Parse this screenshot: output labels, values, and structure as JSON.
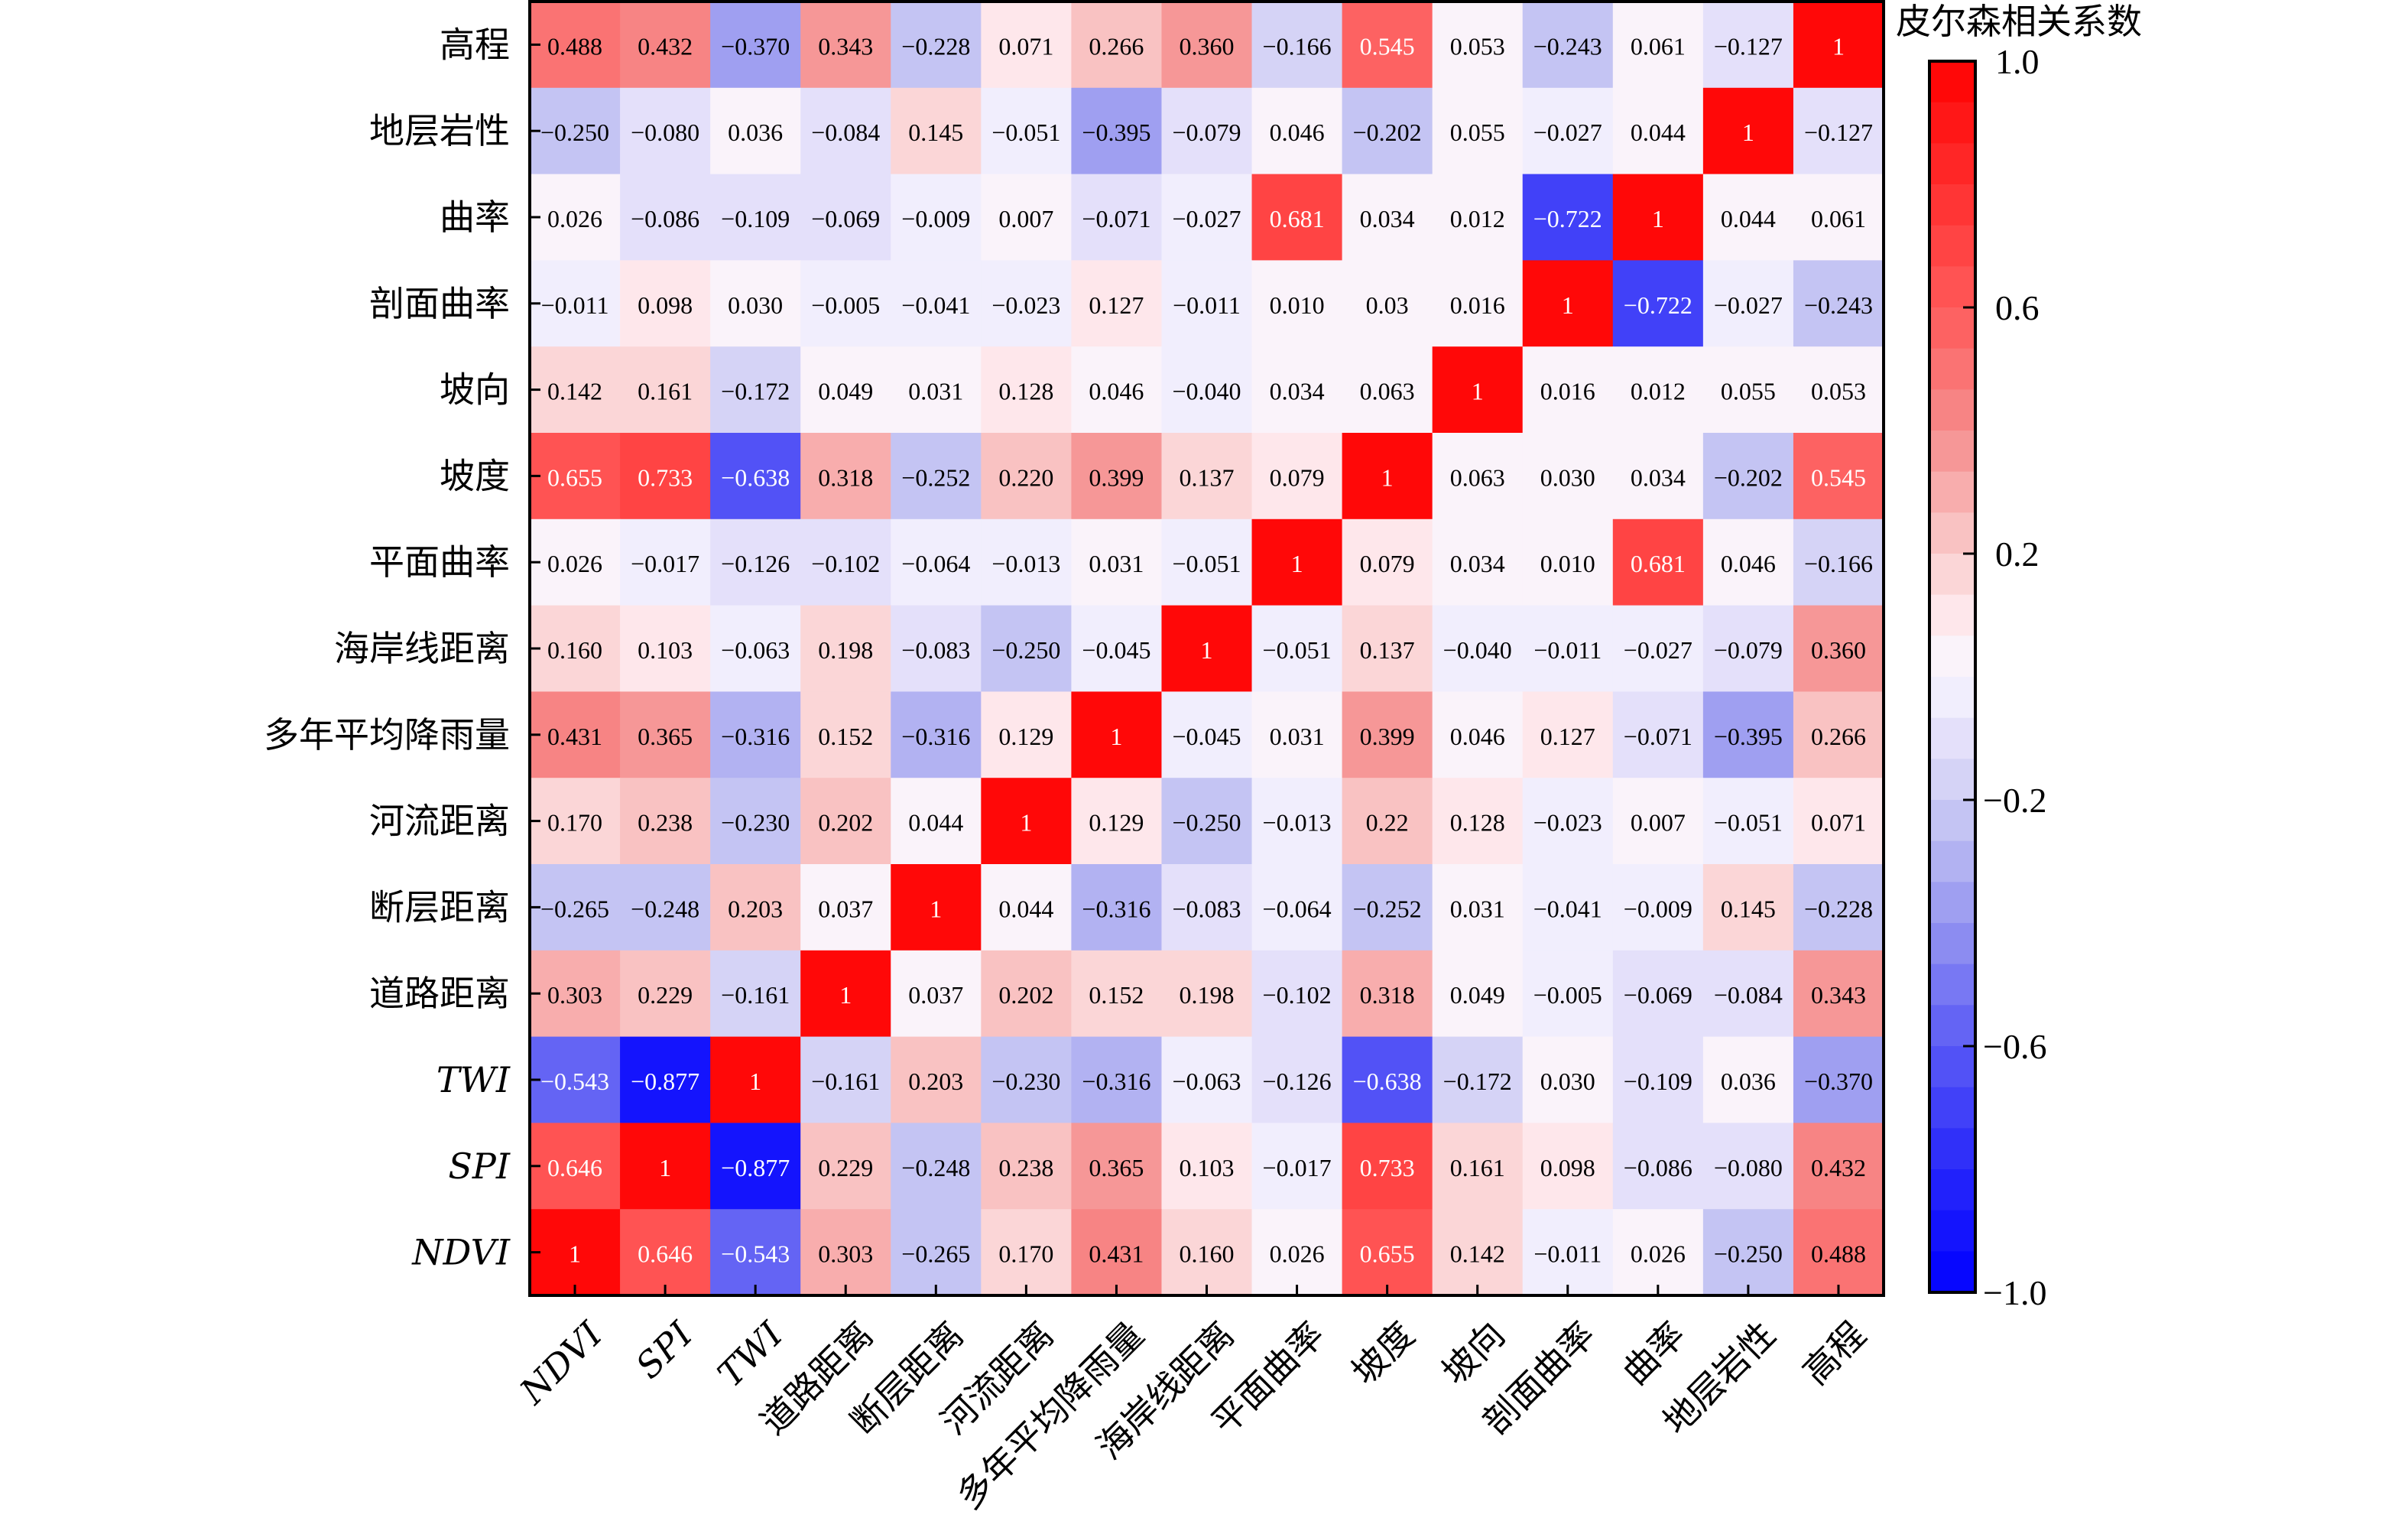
{
  "chart_data": {
    "type": "heatmap",
    "title": "",
    "colorbar": {
      "title": "皮尔森相关系数",
      "range": [
        -1.0,
        1.0
      ],
      "ticks": [
        1.0,
        0.6,
        0.2,
        -0.2,
        -0.6,
        -1.0
      ],
      "tick_labels": [
        "1.0",
        "0.6",
        "0.2",
        "−0.2",
        "−0.6",
        "−1.0"
      ],
      "bands": 30,
      "low_color": "#0000FF",
      "mid_color": "#FFF0F5",
      "high_color": "#FF0000",
      "placement": "right"
    },
    "x_labels": [
      "NDVI",
      "SPI",
      "TWI",
      "道路距离",
      "断层距离",
      "河流距离",
      "多年平均降雨量",
      "海岸线距离",
      "平面曲率",
      "坡度",
      "坡向",
      "剖面曲率",
      "曲率",
      "地层岩性",
      "高程"
    ],
    "y_labels": [
      "高程",
      "地层岩性",
      "曲率",
      "剖面曲率",
      "坡向",
      "坡度",
      "平面曲率",
      "海岸线距离",
      "多年平均降雨量",
      "河流距离",
      "断层距离",
      "道路距离",
      "TWI",
      "SPI",
      "NDVI"
    ],
    "italic_labels": [
      "NDVI",
      "SPI",
      "TWI"
    ],
    "values": [
      [
        0.488,
        0.432,
        -0.37,
        0.343,
        -0.228,
        0.071,
        0.266,
        0.36,
        -0.166,
        0.545,
        0.053,
        -0.243,
        0.061,
        -0.127,
        1
      ],
      [
        -0.25,
        -0.08,
        0.036,
        -0.084,
        0.145,
        -0.051,
        -0.395,
        -0.079,
        0.046,
        -0.202,
        0.055,
        -0.027,
        0.044,
        1,
        -0.127
      ],
      [
        0.026,
        -0.086,
        -0.109,
        -0.069,
        -0.009,
        0.007,
        -0.071,
        -0.027,
        0.681,
        0.034,
        0.012,
        -0.722,
        1,
        0.044,
        0.061
      ],
      [
        -0.011,
        0.098,
        0.03,
        -0.005,
        -0.041,
        -0.023,
        0.127,
        -0.011,
        0.01,
        0.03,
        0.016,
        1,
        -0.722,
        -0.027,
        -0.243
      ],
      [
        0.142,
        0.161,
        -0.172,
        0.049,
        0.031,
        0.128,
        0.046,
        -0.04,
        0.034,
        0.063,
        1,
        0.016,
        0.012,
        0.055,
        0.053
      ],
      [
        0.655,
        0.733,
        -0.638,
        0.318,
        -0.252,
        0.22,
        0.399,
        0.137,
        0.079,
        1,
        0.063,
        0.03,
        0.034,
        -0.202,
        0.545
      ],
      [
        0.026,
        -0.017,
        -0.126,
        -0.102,
        -0.064,
        -0.013,
        0.031,
        -0.051,
        1,
        0.079,
        0.034,
        0.01,
        0.681,
        0.046,
        -0.166
      ],
      [
        0.16,
        0.103,
        -0.063,
        0.198,
        -0.083,
        -0.25,
        -0.045,
        1,
        -0.051,
        0.137,
        -0.04,
        -0.011,
        -0.027,
        -0.079,
        0.36
      ],
      [
        0.431,
        0.365,
        -0.316,
        0.152,
        -0.316,
        0.129,
        1,
        -0.045,
        0.031,
        0.399,
        0.046,
        0.127,
        -0.071,
        -0.395,
        0.266
      ],
      [
        0.17,
        0.238,
        -0.23,
        0.202,
        0.044,
        1,
        0.129,
        -0.25,
        -0.013,
        0.22,
        0.128,
        -0.023,
        0.007,
        -0.051,
        0.071
      ],
      [
        -0.265,
        -0.248,
        0.203,
        0.037,
        1,
        0.044,
        -0.316,
        -0.083,
        -0.064,
        -0.252,
        0.031,
        -0.041,
        -0.009,
        0.145,
        -0.228
      ],
      [
        0.303,
        0.229,
        -0.161,
        1,
        0.037,
        0.202,
        0.152,
        0.198,
        -0.102,
        0.318,
        0.049,
        -0.005,
        -0.069,
        -0.084,
        0.343
      ],
      [
        -0.543,
        -0.877,
        1,
        -0.161,
        0.203,
        -0.23,
        -0.316,
        -0.063,
        -0.126,
        -0.638,
        -0.172,
        0.03,
        -0.109,
        0.036,
        -0.37
      ],
      [
        0.646,
        1,
        -0.877,
        0.229,
        -0.248,
        0.238,
        0.365,
        0.103,
        -0.017,
        0.733,
        0.161,
        0.098,
        -0.086,
        -0.08,
        0.432
      ],
      [
        1,
        0.646,
        -0.543,
        0.303,
        -0.265,
        0.17,
        0.431,
        0.16,
        0.026,
        0.655,
        0.142,
        -0.011,
        0.026,
        -0.25,
        0.488
      ]
    ],
    "display_text": [
      [
        "0.488",
        "0.432",
        "−0.370",
        "0.343",
        "−0.228",
        "0.071",
        "0.266",
        "0.360",
        "−0.166",
        "0.545",
        "0.053",
        "−0.243",
        "0.061",
        "−0.127",
        "1"
      ],
      [
        "−0.250",
        "−0.080",
        "0.036",
        "−0.084",
        "0.145",
        "−0.051",
        "−0.395",
        "−0.079",
        "0.046",
        "−0.202",
        "0.055",
        "−0.027",
        "0.044",
        "1",
        "−0.127"
      ],
      [
        "0.026",
        "−0.086",
        "−0.109",
        "−0.069",
        "−0.009",
        "0.007",
        "−0.071",
        "−0.027",
        "0.681",
        "0.034",
        "0.012",
        "−0.722",
        "1",
        "0.044",
        "0.061"
      ],
      [
        "−0.011",
        "0.098",
        "0.030",
        "−0.005",
        "−0.041",
        "−0.023",
        "0.127",
        "−0.011",
        "0.010",
        "0.03",
        "0.016",
        "1",
        "−0.722",
        "−0.027",
        "−0.243"
      ],
      [
        "0.142",
        "0.161",
        "−0.172",
        "0.049",
        "0.031",
        "0.128",
        "0.046",
        "−0.040",
        "0.034",
        "0.063",
        "1",
        "0.016",
        "0.012",
        "0.055",
        "0.053"
      ],
      [
        "0.655",
        "0.733",
        "−0.638",
        "0.318",
        "−0.252",
        "0.220",
        "0.399",
        "0.137",
        "0.079",
        "1",
        "0.063",
        "0.030",
        "0.034",
        "−0.202",
        "0.545"
      ],
      [
        "0.026",
        "−0.017",
        "−0.126",
        "−0.102",
        "−0.064",
        "−0.013",
        "0.031",
        "−0.051",
        "1",
        "0.079",
        "0.034",
        "0.010",
        "0.681",
        "0.046",
        "−0.166"
      ],
      [
        "0.160",
        "0.103",
        "−0.063",
        "0.198",
        "−0.083",
        "−0.250",
        "−0.045",
        "1",
        "−0.051",
        "0.137",
        "−0.040",
        "−0.011",
        "−0.027",
        "−0.079",
        "0.360"
      ],
      [
        "0.431",
        "0.365",
        "−0.316",
        "0.152",
        "−0.316",
        "0.129",
        "1",
        "−0.045",
        "0.031",
        "0.399",
        "0.046",
        "0.127",
        "−0.071",
        "−0.395",
        "0.266"
      ],
      [
        "0.170",
        "0.238",
        "−0.230",
        "0.202",
        "0.044",
        "1",
        "0.129",
        "−0.250",
        "−0.013",
        "0.22",
        "0.128",
        "−0.023",
        "0.007",
        "−0.051",
        "0.071"
      ],
      [
        "−0.265",
        "−0.248",
        "0.203",
        "0.037",
        "1",
        "0.044",
        "−0.316",
        "−0.083",
        "−0.064",
        "−0.252",
        "0.031",
        "−0.041",
        "−0.009",
        "0.145",
        "−0.228"
      ],
      [
        "0.303",
        "0.229",
        "−0.161",
        "1",
        "0.037",
        "0.202",
        "0.152",
        "0.198",
        "−0.102",
        "0.318",
        "0.049",
        "−0.005",
        "−0.069",
        "−0.084",
        "0.343"
      ],
      [
        "−0.543",
        "−0.877",
        "1",
        "−0.161",
        "0.203",
        "−0.230",
        "−0.316",
        "−0.063",
        "−0.126",
        "−0.638",
        "−0.172",
        "0.030",
        "−0.109",
        "0.036",
        "−0.370"
      ],
      [
        "0.646",
        "1",
        "−0.877",
        "0.229",
        "−0.248",
        "0.238",
        "0.365",
        "0.103",
        "−0.017",
        "0.733",
        "0.161",
        "0.098",
        "−0.086",
        "−0.080",
        "0.432"
      ],
      [
        "1",
        "0.646",
        "−0.543",
        "0.303",
        "−0.265",
        "0.170",
        "0.431",
        "0.160",
        "0.026",
        "0.655",
        "0.142",
        "−0.011",
        "0.026",
        "−0.250",
        "0.488"
      ]
    ],
    "grid": false
  }
}
